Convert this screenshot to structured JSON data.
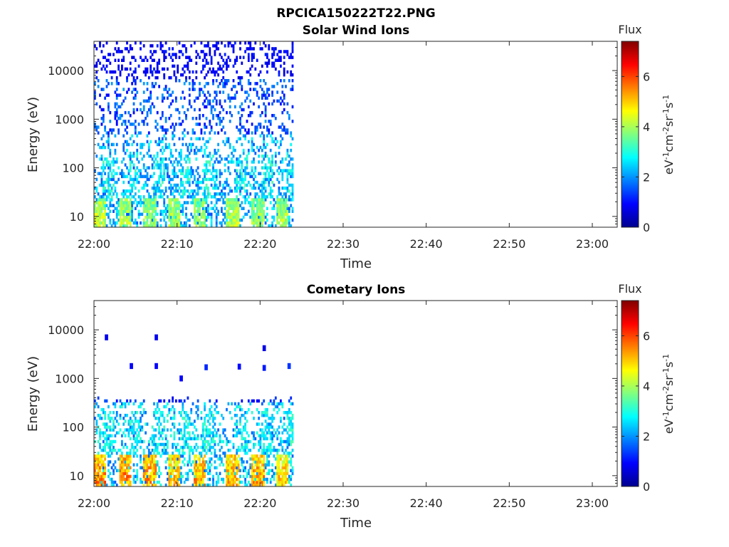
{
  "figure_title": "RPCICA150222T22.PNG",
  "chart_data": [
    {
      "type": "heatmap",
      "title": "Solar Wind Ions",
      "xlabel": "Time",
      "ylabel": "Energy (eV)",
      "x_tick_labels": [
        "22:00",
        "22:10",
        "22:20",
        "22:30",
        "22:40",
        "22:50",
        "23:00"
      ],
      "y_tick_labels": [
        "10",
        "100",
        "1000",
        "10000"
      ],
      "y_scale": "log",
      "xlim": [
        "22:00",
        "23:03"
      ],
      "ylim": [
        6,
        40000
      ],
      "data_extent": [
        "22:00",
        "22:24"
      ],
      "colorbar": {
        "title": "Flux",
        "label": "eV-1cm-2sr-1s-1",
        "ticks": [
          "0",
          "2",
          "4",
          "6"
        ],
        "range": [
          0,
          7.4
        ],
        "colormap": "jet"
      },
      "events": [
        {
          "start": "22:00",
          "end": "22:01",
          "peak": 4.8,
          "energy_max": 25
        },
        {
          "start": "22:03",
          "end": "22:04",
          "peak": 4.6,
          "energy_max": 25
        },
        {
          "start": "22:06",
          "end": "22:07",
          "peak": 4.4,
          "energy_max": 25
        },
        {
          "start": "22:09",
          "end": "22:10",
          "peak": 4.6,
          "energy_max": 25
        },
        {
          "start": "22:12",
          "end": "22:13",
          "peak": 4.4,
          "energy_max": 25
        },
        {
          "start": "22:16",
          "end": "22:17",
          "peak": 4.6,
          "energy_max": 25
        },
        {
          "start": "22:19",
          "end": "22:20",
          "peak": 4.4,
          "energy_max": 25
        },
        {
          "start": "22:22",
          "end": "22:23",
          "peak": 4.6,
          "energy_max": 25
        }
      ],
      "noise_max_energy": 40000
    },
    {
      "type": "heatmap",
      "title": "Cometary Ions",
      "xlabel": "Time",
      "ylabel": "Energy (eV)",
      "x_tick_labels": [
        "22:00",
        "22:10",
        "22:20",
        "22:30",
        "22:40",
        "22:50",
        "23:00"
      ],
      "y_tick_labels": [
        "10",
        "100",
        "1000",
        "10000"
      ],
      "y_scale": "log",
      "xlim": [
        "22:00",
        "23:03"
      ],
      "ylim": [
        6,
        40000
      ],
      "data_extent": [
        "22:00",
        "22:24"
      ],
      "colorbar": {
        "title": "Flux",
        "label": "eV-1cm-2sr-1s-1",
        "ticks": [
          "0",
          "2",
          "4",
          "6"
        ],
        "range": [
          0,
          7.4
        ],
        "colormap": "jet"
      },
      "events": [
        {
          "start": "22:00",
          "end": "22:01",
          "peak": 6.2,
          "energy_max": 28
        },
        {
          "start": "22:03",
          "end": "22:04",
          "peak": 6.2,
          "energy_max": 28
        },
        {
          "start": "22:06",
          "end": "22:07",
          "peak": 6.0,
          "energy_max": 28
        },
        {
          "start": "22:09",
          "end": "22:10",
          "peak": 5.8,
          "energy_max": 28
        },
        {
          "start": "22:12",
          "end": "22:13",
          "peak": 6.0,
          "energy_max": 28
        },
        {
          "start": "22:16",
          "end": "22:17",
          "peak": 5.9,
          "energy_max": 28
        },
        {
          "start": "22:19",
          "end": "22:20",
          "peak": 6.0,
          "energy_max": 28
        },
        {
          "start": "22:22",
          "end": "22:23",
          "peak": 5.6,
          "energy_max": 28
        }
      ],
      "noise_max_energy": 400,
      "high_energy_spots": [
        {
          "time": "22:04",
          "energy": 1800,
          "level": 0.9
        },
        {
          "time": "22:07",
          "energy": 1800,
          "level": 0.9
        },
        {
          "time": "22:13",
          "energy": 1700,
          "level": 1.2
        },
        {
          "time": "22:17",
          "energy": 1750,
          "level": 1.0
        },
        {
          "time": "22:20",
          "energy": 1650,
          "level": 1.1
        },
        {
          "time": "22:23",
          "energy": 1800,
          "level": 1.3
        },
        {
          "time": "22:01",
          "energy": 7000,
          "level": 0.8
        },
        {
          "time": "22:07",
          "energy": 7000,
          "level": 0.8
        },
        {
          "time": "22:10",
          "energy": 1000,
          "level": 0.9
        },
        {
          "time": "22:20",
          "energy": 4200,
          "level": 0.7
        }
      ]
    }
  ]
}
